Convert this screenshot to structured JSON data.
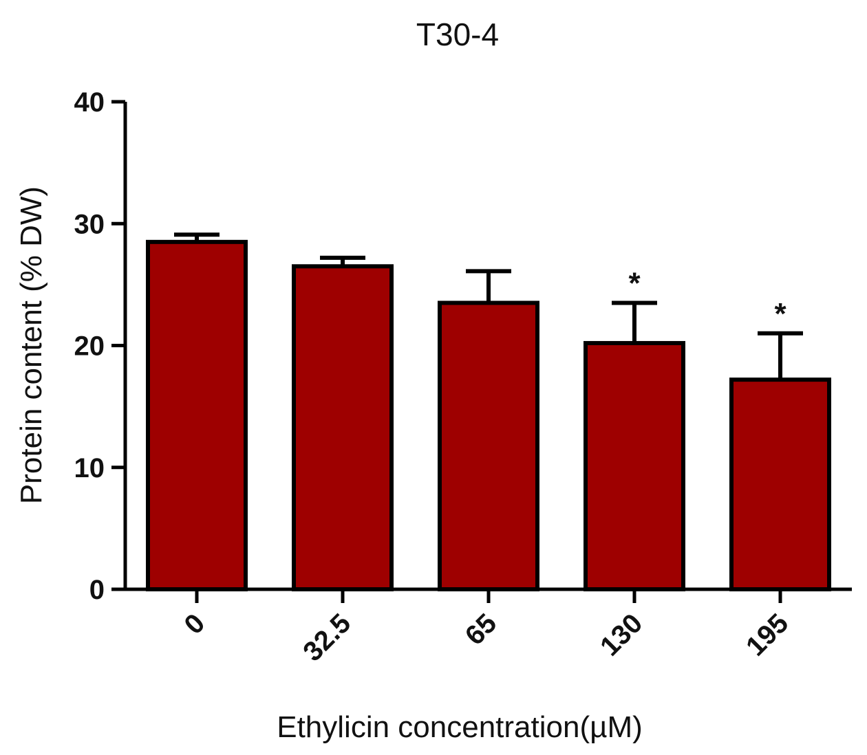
{
  "chart_data": {
    "type": "bar",
    "title": "T30-4",
    "xlabel": "Ethylicin concentration(µM)",
    "ylabel": "Protein content (% DW)",
    "categories": [
      "0",
      "32.5",
      "65",
      "130",
      "195"
    ],
    "values": [
      28.5,
      26.5,
      23.5,
      20.2,
      17.2
    ],
    "error": [
      0.6,
      0.7,
      2.6,
      3.3,
      3.8
    ],
    "significance": [
      "",
      "",
      "",
      "*",
      "*"
    ],
    "ylim": [
      0,
      40
    ],
    "yticks": [
      0,
      10,
      20,
      30,
      40
    ],
    "grid": false,
    "colors": {
      "bar_fill": "#9e0000",
      "bar_stroke": "#000000",
      "axis": "#000000"
    }
  }
}
